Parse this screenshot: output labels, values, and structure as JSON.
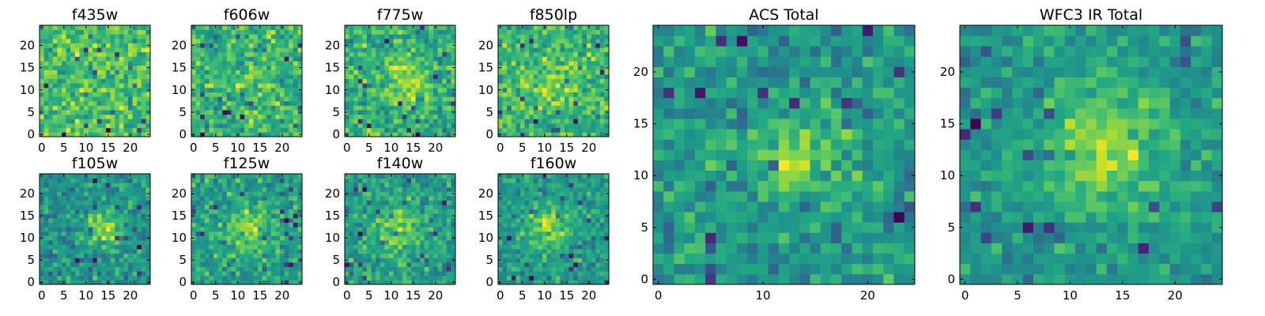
{
  "chart_data": [
    {
      "type": "heatmap",
      "title": "f435w",
      "xlim": [
        -0.5,
        24.5
      ],
      "ylim": [
        -0.5,
        24.5
      ],
      "x_ticks": [
        "0",
        "5",
        "10",
        "15",
        "20"
      ],
      "y_ticks": [
        "0",
        "5",
        "10",
        "15",
        "20"
      ],
      "colormap": "viridis",
      "noise_seed": 11,
      "blob": {
        "center": [
          12,
          12
        ],
        "amplitude": 0.0,
        "sigma": 4
      }
    },
    {
      "type": "heatmap",
      "title": "f606w",
      "xlim": [
        -0.5,
        24.5
      ],
      "ylim": [
        -0.5,
        24.5
      ],
      "x_ticks": [
        "0",
        "5",
        "10",
        "15",
        "20"
      ],
      "y_ticks": [
        "0",
        "5",
        "10",
        "15",
        "20"
      ],
      "colormap": "viridis",
      "noise_seed": 23,
      "blob": {
        "center": [
          12,
          12
        ],
        "amplitude": 0.1,
        "sigma": 4
      }
    },
    {
      "type": "heatmap",
      "title": "f775w",
      "xlim": [
        -0.5,
        24.5
      ],
      "ylim": [
        -0.5,
        24.5
      ],
      "x_ticks": [
        "0",
        "5",
        "10",
        "15",
        "20"
      ],
      "y_ticks": [
        "0",
        "5",
        "10",
        "15",
        "20"
      ],
      "colormap": "viridis",
      "noise_seed": 37,
      "blob": {
        "center": [
          13,
          12
        ],
        "amplitude": 0.2,
        "sigma": 4
      }
    },
    {
      "type": "heatmap",
      "title": "f850lp",
      "xlim": [
        -0.5,
        24.5
      ],
      "ylim": [
        -0.5,
        24.5
      ],
      "x_ticks": [
        "0",
        "5",
        "10",
        "15",
        "20"
      ],
      "y_ticks": [
        "0",
        "5",
        "10",
        "15",
        "20"
      ],
      "colormap": "viridis",
      "noise_seed": 41,
      "blob": {
        "center": [
          13,
          12
        ],
        "amplitude": 0.15,
        "sigma": 4
      }
    },
    {
      "type": "heatmap",
      "title": "f105w",
      "xlim": [
        -0.5,
        24.5
      ],
      "ylim": [
        -0.5,
        24.5
      ],
      "x_ticks": [
        "0",
        "5",
        "10",
        "15",
        "20"
      ],
      "y_ticks": [
        "0",
        "5",
        "10",
        "15",
        "20"
      ],
      "colormap": "viridis",
      "noise_seed": 53,
      "blob": {
        "center": [
          14,
          12
        ],
        "amplitude": 0.45,
        "sigma": 3
      }
    },
    {
      "type": "heatmap",
      "title": "f125w",
      "xlim": [
        -0.5,
        24.5
      ],
      "ylim": [
        -0.5,
        24.5
      ],
      "x_ticks": [
        "0",
        "5",
        "10",
        "15",
        "20"
      ],
      "y_ticks": [
        "0",
        "5",
        "10",
        "15",
        "20"
      ],
      "colormap": "viridis",
      "noise_seed": 67,
      "blob": {
        "center": [
          12,
          12
        ],
        "amplitude": 0.3,
        "sigma": 4
      }
    },
    {
      "type": "heatmap",
      "title": "f140w",
      "xlim": [
        -0.5,
        24.5
      ],
      "ylim": [
        -0.5,
        24.5
      ],
      "x_ticks": [
        "0",
        "5",
        "10",
        "15",
        "20"
      ],
      "y_ticks": [
        "0",
        "5",
        "10",
        "15",
        "20"
      ],
      "colormap": "viridis",
      "noise_seed": 79,
      "blob": {
        "center": [
          12,
          12
        ],
        "amplitude": 0.35,
        "sigma": 4
      }
    },
    {
      "type": "heatmap",
      "title": "f160w",
      "xlim": [
        -0.5,
        24.5
      ],
      "ylim": [
        -0.5,
        24.5
      ],
      "x_ticks": [
        "0",
        "5",
        "10",
        "15",
        "20"
      ],
      "y_ticks": [
        "0",
        "5",
        "10",
        "15",
        "20"
      ],
      "colormap": "viridis",
      "noise_seed": 97,
      "blob": {
        "center": [
          11,
          12
        ],
        "amplitude": 0.5,
        "sigma": 3
      }
    },
    {
      "type": "heatmap",
      "title": "ACS Total",
      "xlim": [
        -0.5,
        24.5
      ],
      "ylim": [
        -0.5,
        24.5
      ],
      "x_ticks": [
        "0",
        "10",
        "20"
      ],
      "y_ticks": [
        "0",
        "5",
        "10",
        "15",
        "20"
      ],
      "colormap": "viridis",
      "noise_seed": 101,
      "blob": {
        "center": [
          13,
          12
        ],
        "amplitude": 0.4,
        "sigma": 3
      }
    },
    {
      "type": "heatmap",
      "title": "WFC3 IR Total",
      "xlim": [
        -0.5,
        24.5
      ],
      "ylim": [
        -0.5,
        24.5
      ],
      "x_ticks": [
        "0",
        "5",
        "10",
        "15",
        "20"
      ],
      "y_ticks": [
        "0",
        "5",
        "10",
        "15",
        "20"
      ],
      "colormap": "viridis",
      "noise_seed": 113,
      "blob": {
        "center": [
          13,
          13
        ],
        "amplitude": 0.55,
        "sigma": 4
      }
    }
  ]
}
